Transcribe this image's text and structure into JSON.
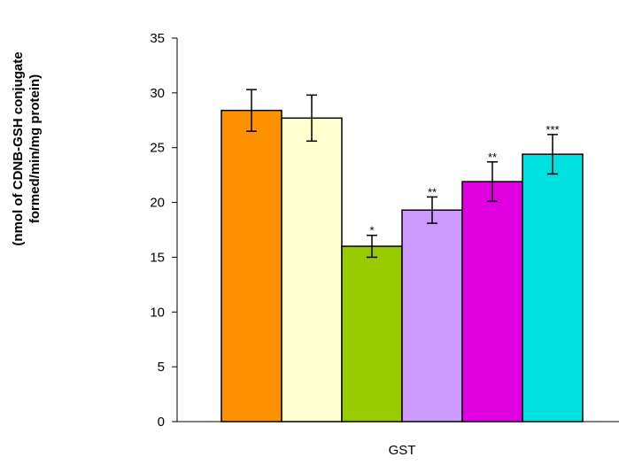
{
  "chart_data": {
    "type": "bar",
    "title": "",
    "ylabel_line1": "(nmol of CDNB-GSH conjugate",
    "ylabel_line2": "formed/min/mg protein)",
    "xlabel": "GST",
    "ylim": [
      0,
      35
    ],
    "yticks": [
      0,
      5,
      10,
      15,
      20,
      25,
      30,
      35
    ],
    "grid": false,
    "legend": "none",
    "categories": [
      "GST"
    ],
    "series": [
      {
        "values": [
          28.4
        ],
        "error": [
          1.9
        ],
        "color": "#FF9000",
        "significance": ""
      },
      {
        "values": [
          27.7
        ],
        "error": [
          2.1
        ],
        "color": "#FFFFD0",
        "significance": ""
      },
      {
        "values": [
          16.0
        ],
        "error": [
          1.0
        ],
        "color": "#99CC00",
        "significance": "*"
      },
      {
        "values": [
          19.3
        ],
        "error": [
          1.2
        ],
        "color": "#CC99FF",
        "significance": "**"
      },
      {
        "values": [
          21.9
        ],
        "error": [
          1.8
        ],
        "color": "#E000E0",
        "significance": "**"
      },
      {
        "values": [
          24.4
        ],
        "error": [
          1.8
        ],
        "color": "#00E0E0",
        "significance": "***"
      }
    ]
  }
}
